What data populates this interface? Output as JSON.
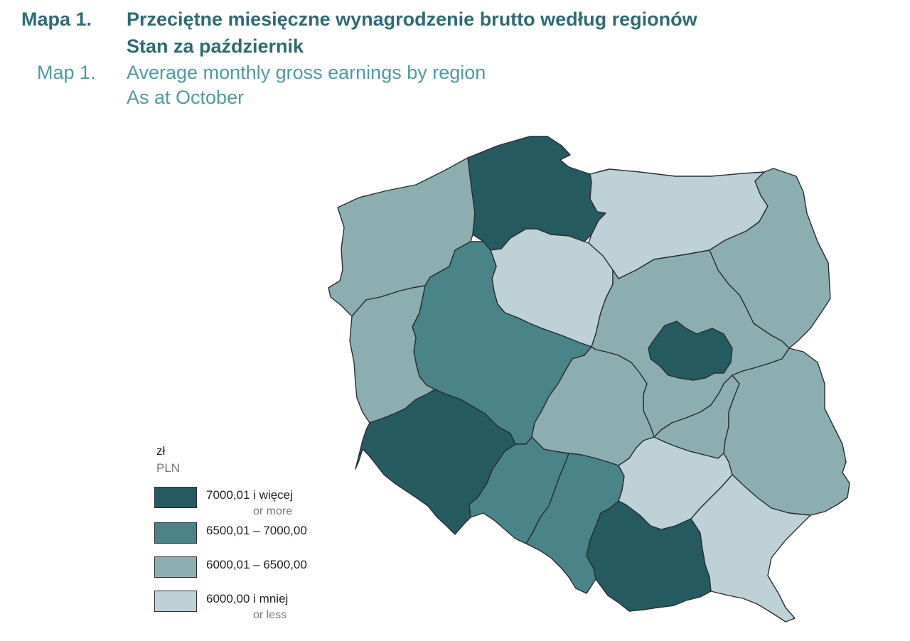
{
  "title": {
    "pl_number": "Mapa 1.",
    "pl_line1": "Przeciętne miesięczne wynagrodzenie brutto według regionów",
    "pl_line2": "Stan za październik",
    "en_number": "Map 1.",
    "en_line1": "Average monthly gross earnings by region",
    "en_line2": "As at October"
  },
  "legend": {
    "unit_pl": "zł",
    "unit_en": "PLN",
    "classes": [
      {
        "label": "7000,01 i więcej",
        "sub": "or more",
        "color": "#255a60"
      },
      {
        "label": "6500,01 – 7000,00",
        "sub": "",
        "color": "#4a8388"
      },
      {
        "label": "6000,01 – 6500,00",
        "sub": "",
        "color": "#8daeb0"
      },
      {
        "label": "6000,00 i mniej",
        "sub": "or less",
        "color": "#bdd1d6"
      }
    ]
  },
  "map": {
    "regions": [
      {
        "name": "pomorskie",
        "class": 0
      },
      {
        "name": "mazowieckie-warszawa",
        "class": 0
      },
      {
        "name": "dolnośląskie",
        "class": 0
      },
      {
        "name": "małopolskie",
        "class": 0
      },
      {
        "name": "wielkopolskie",
        "class": 1
      },
      {
        "name": "opolskie",
        "class": 1
      },
      {
        "name": "śląskie",
        "class": 1
      },
      {
        "name": "zachodniopomorskie",
        "class": 2
      },
      {
        "name": "lubuskie",
        "class": 2
      },
      {
        "name": "podlaskie",
        "class": 2
      },
      {
        "name": "mazowieckie",
        "class": 2
      },
      {
        "name": "łódzkie",
        "class": 2
      },
      {
        "name": "mazowieckie-radom",
        "class": 2
      },
      {
        "name": "lubelskie",
        "class": 2
      },
      {
        "name": "kujawsko-pomorskie",
        "class": 3
      },
      {
        "name": "warmińsko-mazurskie",
        "class": 3
      },
      {
        "name": "świętokrzyskie",
        "class": 3
      },
      {
        "name": "podkarpackie",
        "class": 3
      }
    ]
  }
}
